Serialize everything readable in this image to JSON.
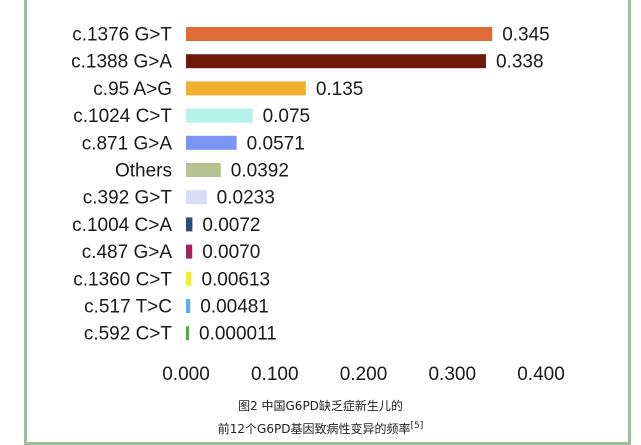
{
  "chart_data": {
    "type": "bar",
    "orientation": "horizontal",
    "categories": [
      "c.1376 G>T",
      "c.1388 G>A",
      "c.95 A>G",
      "c.1024 C>T",
      "c.871 G>A",
      "Others",
      "c.392 G>T",
      "c.1004 C>A",
      "c.487 G>A",
      "c.1360 C>T",
      "c.517 T>C",
      "c.592 C>T"
    ],
    "values": [
      0.345,
      0.338,
      0.135,
      0.075,
      0.0571,
      0.0392,
      0.0233,
      0.0072,
      0.007,
      0.00613,
      0.00481,
      1.1e-05
    ],
    "value_labels": [
      "0.345",
      "0.338",
      "0.135",
      "0.075",
      "0.0571",
      "0.0392",
      "0.0233",
      "0.0072",
      "0.0070",
      "0.00613",
      "0.00481",
      "0.000011"
    ],
    "colors": [
      "#e06b35",
      "#6b1a0c",
      "#f0b02c",
      "#b3f2e8",
      "#7b96f2",
      "#b5c38e",
      "#d7dcf8",
      "#2e4a78",
      "#a3205e",
      "#f2ee2a",
      "#5aaee0",
      "#4caf3c"
    ],
    "xticks": [
      "0.000",
      "0.100",
      "0.200",
      "0.300",
      "0.400"
    ],
    "xlim": [
      0,
      0.4
    ],
    "title": "",
    "xlabel": "",
    "ylabel": ""
  },
  "caption": {
    "line1": "图2 中国G6PD缺乏症新生儿的",
    "line2": "前12个G6PD基因致病性变异的频率",
    "ref": "[5]"
  }
}
